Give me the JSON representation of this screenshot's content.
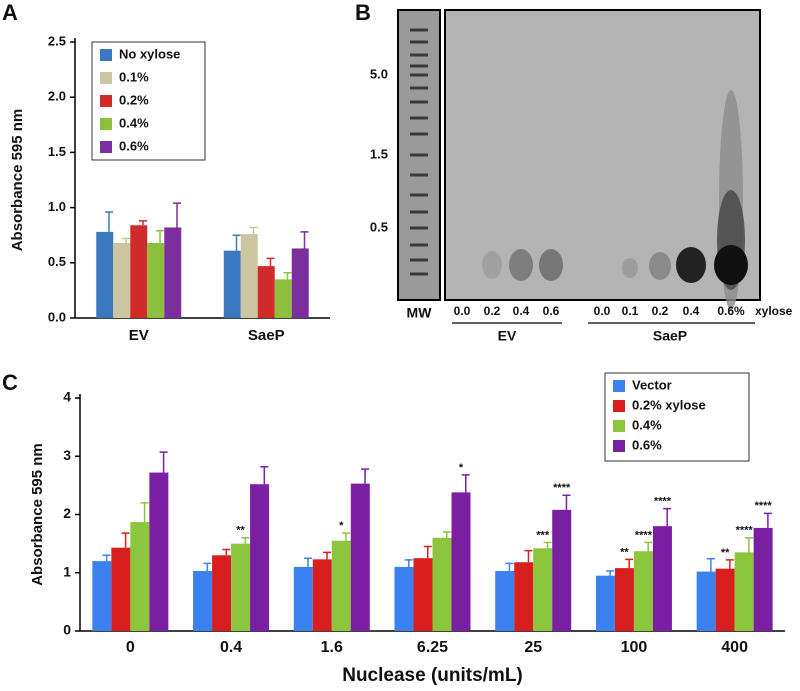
{
  "chart_data": [
    {
      "type": "bar",
      "panel": "A",
      "ylabel": "Absorbance 595 nm",
      "categories": [
        "EV",
        "SaeP"
      ],
      "series": [
        {
          "name": "No xylose",
          "color": "#3a78c0",
          "values": [
            0.78,
            0.61
          ],
          "errors": [
            0.18,
            0.14
          ]
        },
        {
          "name": "0.1%",
          "color": "#cdc5a0",
          "values": [
            0.68,
            0.76
          ],
          "errors": [
            0.04,
            0.06
          ]
        },
        {
          "name": "0.2%",
          "color": "#d02a2a",
          "values": [
            0.84,
            0.47
          ],
          "errors": [
            0.04,
            0.07
          ]
        },
        {
          "name": "0.4%",
          "color": "#8cc03c",
          "values": [
            0.68,
            0.35
          ],
          "errors": [
            0.11,
            0.06
          ]
        },
        {
          "name": "0.6%",
          "color": "#7b2f9e",
          "values": [
            0.82,
            0.63
          ],
          "errors": [
            0.22,
            0.15
          ]
        }
      ],
      "ylim": [
        0,
        2.5
      ],
      "yticks": [
        {
          "value": 0,
          "label": "0.0"
        },
        0.5,
        {
          "value": 1,
          "label": "1.0"
        },
        1.5,
        {
          "value": 2,
          "label": "2.0"
        },
        2.5
      ],
      "legend": "upper-left"
    },
    {
      "type": "bar",
      "panel": "C",
      "ylabel": "Absorbance 595 nm",
      "xlabel": "Nuclease (units/mL)",
      "categories": [
        "0",
        "0.4",
        "1.6",
        "6.25",
        "25",
        "100",
        "400"
      ],
      "series": [
        {
          "name": "Vector",
          "color": "#3b82f0",
          "values": [
            1.2,
            1.03,
            1.1,
            1.1,
            1.03,
            0.95,
            1.02
          ],
          "errors": [
            0.1,
            0.13,
            0.15,
            0.12,
            0.13,
            0.08,
            0.22
          ],
          "annotations": [
            null,
            null,
            null,
            null,
            null,
            null,
            null
          ]
        },
        {
          "name": "0.2% xylose",
          "color": "#d81e1e",
          "values": [
            1.43,
            1.3,
            1.23,
            1.25,
            1.18,
            1.08,
            1.07
          ],
          "errors": [
            0.25,
            0.1,
            0.12,
            0.2,
            0.2,
            0.15,
            0.15
          ],
          "annotations": [
            null,
            null,
            null,
            null,
            null,
            "**",
            "**"
          ]
        },
        {
          "name": "0.4%",
          "color": "#8cc63c",
          "values": [
            1.87,
            1.5,
            1.55,
            1.6,
            1.42,
            1.37,
            1.35
          ],
          "errors": [
            0.33,
            0.1,
            0.13,
            0.1,
            0.1,
            0.15,
            0.25
          ],
          "annotations": [
            null,
            "**",
            "*",
            null,
            "***",
            "****",
            "****"
          ]
        },
        {
          "name": "0.6%",
          "color": "#7a1fa2",
          "values": [
            2.72,
            2.52,
            2.53,
            2.38,
            2.08,
            1.8,
            1.77
          ],
          "errors": [
            0.35,
            0.3,
            0.25,
            0.3,
            0.25,
            0.3,
            0.25
          ],
          "annotations": [
            null,
            null,
            null,
            "*",
            "****",
            "****",
            "****"
          ]
        }
      ],
      "ylim": [
        0,
        4
      ],
      "yticks": [
        0,
        1,
        2,
        3,
        4
      ],
      "legend": "upper-right"
    }
  ],
  "gel": {
    "panel": "B",
    "ladder_labels": [
      "5.0",
      "1.5",
      "0.5"
    ],
    "ladder_name": "MW",
    "lanes": [
      "0.0",
      "0.2",
      "0.4",
      "0.6",
      "0.0",
      "0.1",
      "0.2",
      "0.4",
      "0.6%"
    ],
    "lane_unit": "xylose",
    "groups": [
      "EV",
      "SaeP"
    ]
  }
}
